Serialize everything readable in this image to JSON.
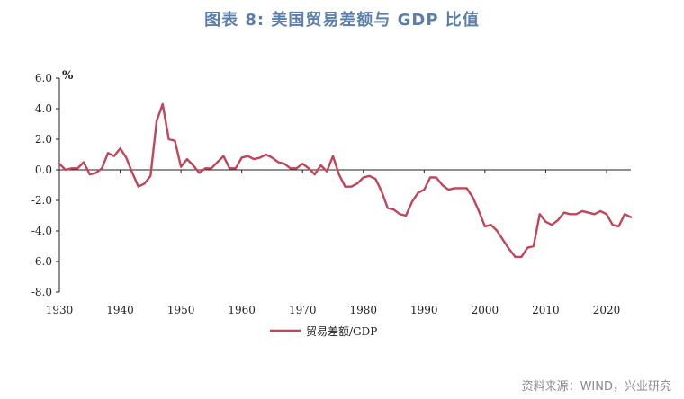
{
  "title": "图表 8:   美国贸易差额与 GDP 比值",
  "source": "资料来源：WIND，兴业研究",
  "chart_data": {
    "type": "line",
    "title": "图表 8:   美国贸易差额与 GDP 比值",
    "ylabel_unit": "%",
    "xlim": [
      1930,
      2024
    ],
    "ylim": [
      -8.0,
      6.0
    ],
    "x_ticks": [
      1930,
      1940,
      1950,
      1960,
      1970,
      1980,
      1990,
      2000,
      2010,
      2020
    ],
    "y_ticks": [
      "6.0",
      "4.0",
      "2.0",
      "0.0",
      "-2.0",
      "-4.0",
      "-6.0",
      "-8.0"
    ],
    "y_tick_values": [
      6,
      4,
      2,
      0,
      -2,
      -4,
      -6,
      -8
    ],
    "grid": false,
    "legend_position": "bottom",
    "series": [
      {
        "name": "贸易差额/GDP",
        "color": "#c0455a",
        "x": [
          1930,
          1931,
          1932,
          1933,
          1934,
          1935,
          1936,
          1937,
          1938,
          1939,
          1940,
          1941,
          1942,
          1943,
          1944,
          1945,
          1946,
          1947,
          1948,
          1949,
          1950,
          1951,
          1952,
          1953,
          1954,
          1955,
          1956,
          1957,
          1958,
          1959,
          1960,
          1961,
          1962,
          1963,
          1964,
          1965,
          1966,
          1967,
          1968,
          1969,
          1970,
          1971,
          1972,
          1973,
          1974,
          1975,
          1976,
          1977,
          1978,
          1979,
          1980,
          1981,
          1982,
          1983,
          1984,
          1985,
          1986,
          1987,
          1988,
          1989,
          1990,
          1991,
          1992,
          1993,
          1994,
          1995,
          1996,
          1997,
          1998,
          1999,
          2000,
          2001,
          2002,
          2003,
          2004,
          2005,
          2006,
          2007,
          2008,
          2009,
          2010,
          2011,
          2012,
          2013,
          2014,
          2015,
          2016,
          2017,
          2018,
          2019,
          2020,
          2021,
          2022,
          2023,
          2024
        ],
        "values": [
          0.4,
          0.0,
          0.1,
          0.1,
          0.5,
          -0.3,
          -0.2,
          0.1,
          1.1,
          0.9,
          1.4,
          0.8,
          -0.2,
          -1.1,
          -0.9,
          -0.4,
          3.2,
          4.3,
          2.0,
          1.9,
          0.2,
          0.7,
          0.3,
          -0.2,
          0.1,
          0.1,
          0.5,
          0.9,
          0.1,
          0.1,
          0.8,
          0.9,
          0.7,
          0.8,
          1.0,
          0.8,
          0.5,
          0.4,
          0.1,
          0.1,
          0.4,
          0.1,
          -0.3,
          0.3,
          -0.1,
          0.9,
          -0.3,
          -1.1,
          -1.1,
          -0.9,
          -0.5,
          -0.4,
          -0.6,
          -1.4,
          -2.5,
          -2.6,
          -2.9,
          -3.0,
          -2.1,
          -1.5,
          -1.3,
          -0.5,
          -0.5,
          -1.0,
          -1.3,
          -1.2,
          -1.2,
          -1.2,
          -1.8,
          -2.7,
          -3.7,
          -3.6,
          -4.0,
          -4.6,
          -5.2,
          -5.7,
          -5.7,
          -5.1,
          -5.0,
          -2.9,
          -3.4,
          -3.6,
          -3.3,
          -2.8,
          -2.9,
          -2.9,
          -2.7,
          -2.8,
          -2.9,
          -2.7,
          -2.9,
          -3.6,
          -3.7,
          -2.9,
          -3.1
        ]
      }
    ]
  }
}
